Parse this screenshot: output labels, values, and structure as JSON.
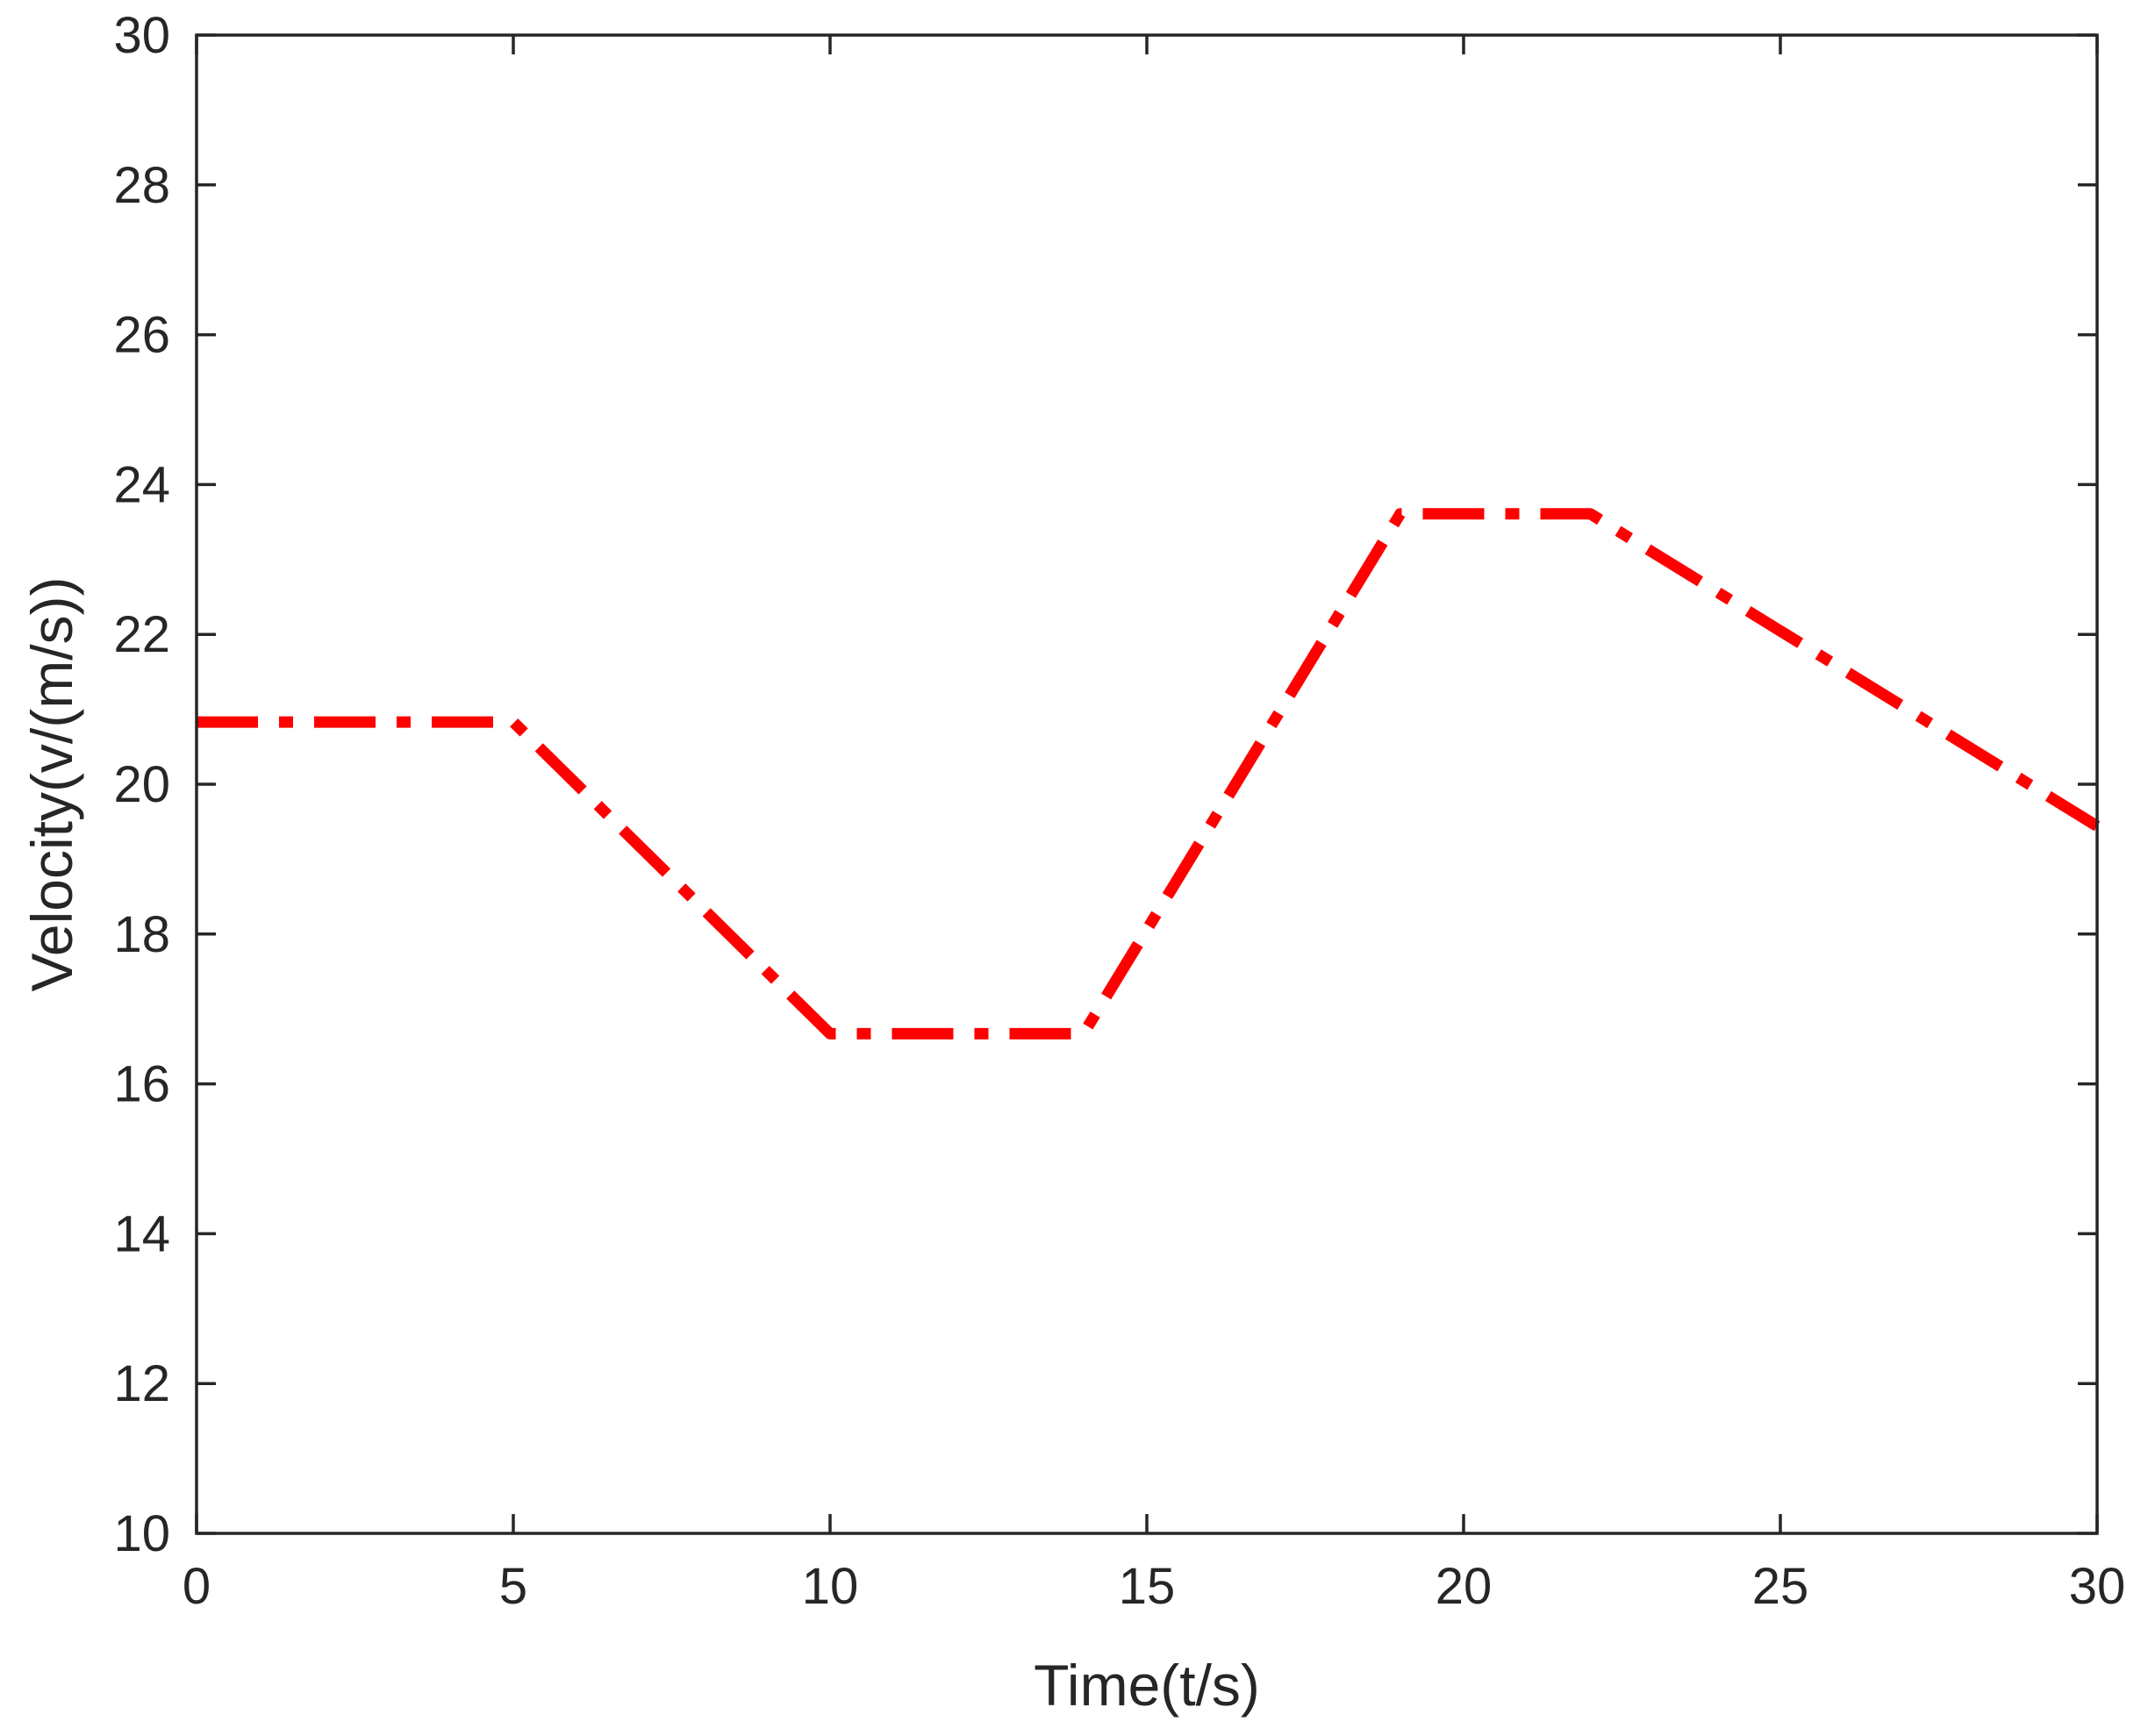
{
  "chart_data": {
    "type": "line",
    "title": "",
    "xlabel": "Time(t/s)",
    "ylabel": "Velocity(v/(m/s))",
    "xlim": [
      0,
      30
    ],
    "ylim": [
      10,
      30
    ],
    "xticks": [
      0,
      5,
      10,
      15,
      20,
      25,
      30
    ],
    "yticks": [
      10,
      12,
      14,
      16,
      18,
      20,
      22,
      24,
      26,
      28,
      30
    ],
    "grid": false,
    "legend": "none",
    "series": [
      {
        "color": "#ff0000",
        "line_style": "dash-dot",
        "x": [
          0,
          5,
          10,
          14,
          19,
          22,
          30
        ],
        "y": [
          20.83,
          20.83,
          16.67,
          16.67,
          23.61,
          23.61,
          19.44
        ]
      }
    ],
    "axis_color": "#262626"
  }
}
